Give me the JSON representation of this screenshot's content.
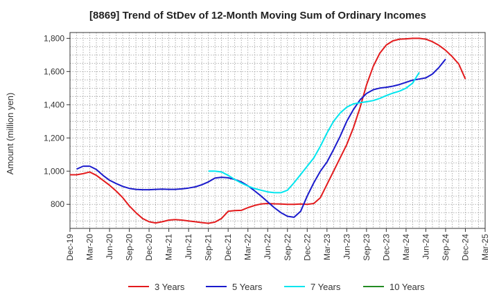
{
  "chart_data": {
    "type": "line",
    "title": "[8869]  Trend of StDev of 12-Month Moving Sum of Ordinary Incomes",
    "xlabel": "",
    "ylabel": "Amount (million yen)",
    "ylim": [
      655,
      1835
    ],
    "y_ticks": [
      800,
      1000,
      1200,
      1400,
      1600,
      1800
    ],
    "y_tick_labels": [
      "800",
      "1,000",
      "1,200",
      "1,400",
      "1,600",
      "1,800"
    ],
    "x_tick_labels": [
      "Dec-19",
      "Mar-20",
      "Jun-20",
      "Sep-20",
      "Dec-20",
      "Mar-21",
      "Jun-21",
      "Sep-21",
      "Dec-21",
      "Mar-22",
      "Jun-22",
      "Sep-22",
      "Dec-22",
      "Mar-23",
      "Jun-23",
      "Sep-23",
      "Dec-23",
      "Mar-24",
      "Jun-24",
      "Sep-24",
      "Dec-24",
      "Mar-25"
    ],
    "x_start": "Dec-19",
    "x_months": 63,
    "grid": true,
    "legend_position": "bottom",
    "series": [
      {
        "name": "3 Years",
        "color": "#e31a1c",
        "start_index": 0,
        "values": [
          978,
          978,
          985,
          995,
          975,
          945,
          915,
          880,
          840,
          790,
          750,
          715,
          695,
          688,
          695,
          705,
          708,
          705,
          700,
          695,
          690,
          686,
          693,
          715,
          758,
          762,
          764,
          780,
          793,
          802,
          805,
          803,
          802,
          800,
          800,
          802,
          800,
          805,
          840,
          920,
          1000,
          1080,
          1160,
          1260,
          1380,
          1520,
          1630,
          1710,
          1760,
          1785,
          1795,
          1797,
          1800,
          1800,
          1795,
          1780,
          1758,
          1728,
          1690,
          1645,
          1555
        ]
      },
      {
        "name": "5 Years",
        "color": "#1a1acc",
        "start_index": 1,
        "values": [
          1012,
          1030,
          1030,
          1010,
          975,
          945,
          925,
          908,
          896,
          890,
          888,
          888,
          890,
          892,
          890,
          890,
          893,
          898,
          905,
          918,
          935,
          958,
          963,
          960,
          950,
          935,
          912,
          882,
          850,
          815,
          780,
          750,
          728,
          722,
          758,
          850,
          930,
          1000,
          1055,
          1130,
          1210,
          1300,
          1370,
          1428,
          1468,
          1490,
          1500,
          1505,
          1512,
          1522,
          1535,
          1548,
          1555,
          1562,
          1585,
          1625,
          1675
        ]
      },
      {
        "name": "7 Years",
        "color": "#00e5ee",
        "start_index": 21,
        "values": [
          1000,
          1000,
          995,
          975,
          950,
          928,
          910,
          895,
          885,
          875,
          870,
          870,
          885,
          930,
          980,
          1030,
          1080,
          1150,
          1230,
          1300,
          1350,
          1385,
          1405,
          1412,
          1418,
          1425,
          1438,
          1455,
          1470,
          1482,
          1500,
          1530,
          1595
        ]
      },
      {
        "name": "10 Years",
        "color": "#228b22",
        "start_index": 0,
        "values": []
      }
    ]
  }
}
